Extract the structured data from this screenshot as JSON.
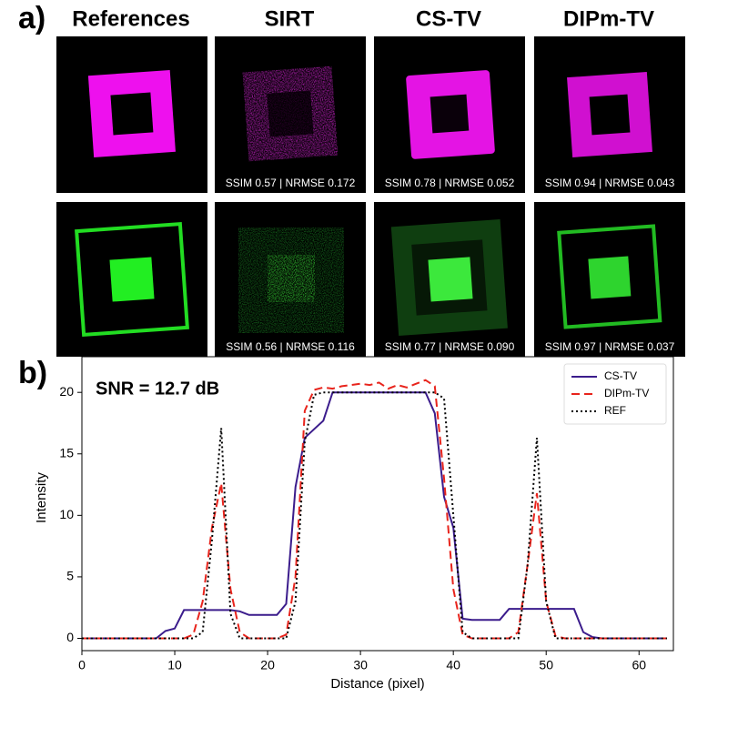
{
  "panel_a": {
    "label": "a)",
    "columns": [
      "References",
      "SIRT",
      "CS-TV",
      "DIPm-TV"
    ],
    "row_1_captions": [
      "SSIM 0.57 | NRMSE 0.172",
      "SSIM 0.78 | NRMSE 0.052",
      "SSIM 0.94 | NRMSE 0.043"
    ],
    "row_2_captions": [
      "SSIM 0.56 | NRMSE 0.116",
      "SSIM 0.77 | NRMSE 0.090",
      "SSIM 0.97 | NRMSE 0.037"
    ]
  },
  "panel_b_label": "b)",
  "chart_data": {
    "type": "line",
    "annotation": "SNR = 12.7 dB",
    "xlabel": "Distance (pixel)",
    "ylabel": "Intensity",
    "x": [
      0,
      1,
      2,
      3,
      4,
      5,
      6,
      7,
      8,
      9,
      10,
      11,
      12,
      13,
      14,
      15,
      16,
      17,
      18,
      19,
      20,
      21,
      22,
      23,
      24,
      25,
      26,
      27,
      28,
      29,
      30,
      31,
      32,
      33,
      34,
      35,
      36,
      37,
      38,
      39,
      40,
      41,
      42,
      43,
      44,
      45,
      46,
      47,
      48,
      49,
      50,
      51,
      52,
      53,
      54,
      55,
      56,
      57,
      58,
      59,
      60,
      61,
      62,
      63
    ],
    "series": [
      {
        "name": "CS-TV",
        "color": "#3b1c8c",
        "linestyle": "solid",
        "values": [
          0,
          0,
          0,
          0,
          0,
          0,
          0,
          0,
          0,
          0.6,
          0.8,
          2.3,
          2.3,
          2.3,
          2.3,
          2.3,
          2.3,
          2.2,
          1.9,
          1.9,
          1.9,
          1.9,
          2.8,
          12.3,
          16.3,
          17,
          17.7,
          20,
          20,
          20,
          20,
          20,
          20,
          20,
          20,
          20,
          20,
          20,
          18.3,
          11.5,
          9,
          1.6,
          1.5,
          1.5,
          1.5,
          1.5,
          2.4,
          2.4,
          2.4,
          2.4,
          2.4,
          2.4,
          2.4,
          2.4,
          0.5,
          0.1,
          0,
          0,
          0,
          0,
          0,
          0,
          0,
          0
        ]
      },
      {
        "name": "DIPm-TV",
        "color": "#e8241c",
        "linestyle": "dashed",
        "values": [
          0,
          0,
          0,
          0,
          0,
          0,
          0,
          0,
          0,
          0,
          0,
          0,
          0.3,
          3,
          9,
          12.6,
          4,
          0.5,
          0,
          0,
          0,
          0,
          0.3,
          5,
          18.5,
          20.2,
          20.4,
          20.3,
          20.5,
          20.6,
          20.7,
          20.6,
          20.8,
          20.3,
          20.6,
          20.4,
          20.7,
          21,
          20.5,
          13,
          4,
          0.3,
          0,
          0,
          0,
          0,
          0,
          0.5,
          6,
          11.8,
          3,
          0.2,
          0,
          0,
          0,
          0,
          0,
          0,
          0,
          0,
          0,
          0,
          0,
          0
        ]
      },
      {
        "name": "REF",
        "color": "#000000",
        "linestyle": "dotted",
        "values": [
          0,
          0,
          0,
          0,
          0,
          0,
          0,
          0,
          0,
          0,
          0,
          0,
          0,
          0.5,
          8,
          17.1,
          2,
          0,
          0,
          0,
          0,
          0,
          0,
          3,
          16,
          19.8,
          20,
          20,
          20,
          20,
          20,
          20,
          20,
          20,
          20,
          20,
          20,
          20,
          20,
          19.5,
          10,
          0.5,
          0,
          0,
          0,
          0,
          0,
          0,
          6,
          16.3,
          3,
          0,
          0,
          0,
          0,
          0,
          0,
          0,
          0,
          0,
          0,
          0,
          0,
          0
        ]
      }
    ],
    "xlim": [
      0,
      63.7
    ],
    "ylim": [
      -1.0,
      22.9
    ],
    "xticks": [
      0,
      10,
      20,
      30,
      40,
      50,
      60
    ],
    "yticks": [
      0,
      5,
      10,
      15,
      20
    ],
    "legend": "upper right",
    "grid": false
  }
}
